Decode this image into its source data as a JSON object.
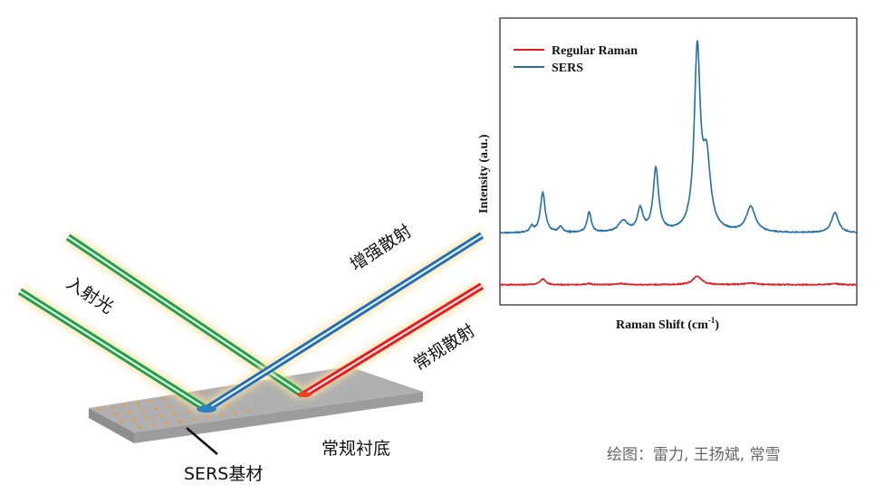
{
  "diagram": {
    "incident_label": "入射光",
    "enhanced_label": "增强散射",
    "regular_label": "常规散射",
    "substrate_label": "常规衬底",
    "sers_label": "SERS基材",
    "colors": {
      "incident": "#1fa04a",
      "enhanced": "#1f6fb8",
      "regular": "#e8191c",
      "substrate": "#a8a8a8",
      "particles": "#e0a050"
    }
  },
  "credit": "绘图：雷力, 王扬斌, 常雪",
  "chart_data": {
    "type": "line",
    "xlabel": "Raman Shift (cm",
    "xlabel_sup": "-1",
    "xlabel_end": ")",
    "ylabel": "Intensity (a.u.)",
    "xlim": [
      0,
      100
    ],
    "ylim": [
      0,
      100
    ],
    "ticks": false,
    "grid": false,
    "legend_placement": "top-left",
    "series": [
      {
        "name": "Regular Raman",
        "color": "#e8191c",
        "baseline": 7,
        "peaks": [
          [
            12,
            2,
            0.9
          ],
          [
            25,
            0.4,
            1
          ],
          [
            34,
            0.4,
            1.5
          ],
          [
            55.3,
            3,
            1.5
          ],
          [
            70.3,
            0.6,
            2
          ],
          [
            93.9,
            0.4,
            1.5
          ]
        ]
      },
      {
        "name": "SERS",
        "color": "#1f6fa8",
        "baseline": 25,
        "peaks": [
          [
            8.9,
            2,
            0.6
          ],
          [
            12,
            14,
            0.8
          ],
          [
            17,
            2,
            0.7
          ],
          [
            25,
            7,
            0.7
          ],
          [
            34.5,
            4,
            1.5
          ],
          [
            39.3,
            8,
            0.9
          ],
          [
            43.7,
            22,
            0.9
          ],
          [
            55.3,
            62,
            1.0
          ],
          [
            57.9,
            24,
            1.3
          ],
          [
            70.3,
            9,
            1.5
          ],
          [
            93.9,
            7,
            1.2
          ]
        ]
      }
    ]
  }
}
